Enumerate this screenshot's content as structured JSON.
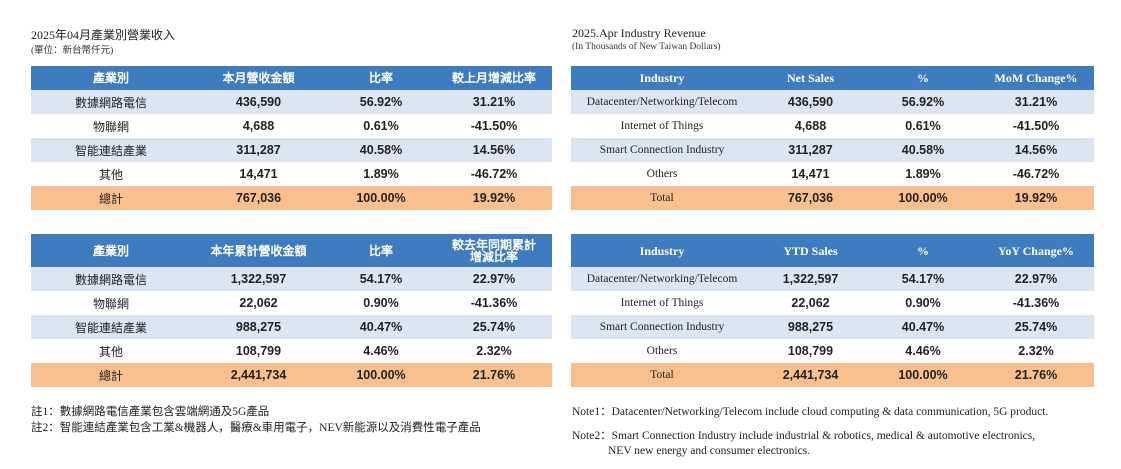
{
  "cn": {
    "title": "2025年04月產業別營業收入",
    "unit": "(單位：新台幣仟元)",
    "monthly": {
      "headers": [
        "產業別",
        "本月營收金額",
        "比率",
        "較上月增減比率"
      ],
      "rows": [
        [
          "數據網路電信",
          "436,590",
          "56.92%",
          "31.21%"
        ],
        [
          "物聯網",
          "4,688",
          "0.61%",
          "-41.50%"
        ],
        [
          "智能連結產業",
          "311,287",
          "40.58%",
          "14.56%"
        ],
        [
          "其他",
          "14,471",
          "1.89%",
          "-46.72%"
        ]
      ],
      "total": [
        "總計",
        "767,036",
        "100.00%",
        "19.92%"
      ]
    },
    "ytd": {
      "headers": [
        "產業別",
        "本年累計營收金額",
        "比率",
        "較去年同期累計\n增減比率"
      ],
      "rows": [
        [
          "數據網路電信",
          "1,322,597",
          "54.17%",
          "22.97%"
        ],
        [
          "物聯網",
          "22,062",
          "0.90%",
          "-41.36%"
        ],
        [
          "智能連結產業",
          "988,275",
          "40.47%",
          "25.74%"
        ],
        [
          "其他",
          "108,799",
          "4.46%",
          "2.32%"
        ]
      ],
      "total": [
        "總計",
        "2,441,734",
        "100.00%",
        "21.76%"
      ]
    },
    "notes": [
      "註1：數據網路電信產業包含雲端網通及5G產品",
      "註2：智能連結產業包含工業&機器人，醫療&車用電子，NEV新能源以及消費性電子產品"
    ]
  },
  "en": {
    "title": "2025.Apr Industry Revenue",
    "unit": "(In Thousands of New Taiwan Dollars)",
    "monthly": {
      "headers": [
        "Industry",
        "Net Sales",
        "%",
        "MoM Change%"
      ],
      "rows": [
        [
          "Datacenter/Networking/Telecom",
          "436,590",
          "56.92%",
          "31.21%"
        ],
        [
          "Internet of Things",
          "4,688",
          "0.61%",
          "-41.50%"
        ],
        [
          "Smart Connection Industry",
          "311,287",
          "40.58%",
          "14.56%"
        ],
        [
          "Others",
          "14,471",
          "1.89%",
          "-46.72%"
        ]
      ],
      "total": [
        "Total",
        "767,036",
        "100.00%",
        "19.92%"
      ]
    },
    "ytd": {
      "headers": [
        "Industry",
        "YTD Sales",
        "%",
        "YoY Change%"
      ],
      "rows": [
        [
          "Datacenter/Networking/Telecom",
          "1,322,597",
          "54.17%",
          "22.97%"
        ],
        [
          "Internet of Things",
          "22,062",
          "0.90%",
          "-41.36%"
        ],
        [
          "Smart Connection Industry",
          "988,275",
          "40.47%",
          "25.74%"
        ],
        [
          "Others",
          "108,799",
          "4.46%",
          "2.32%"
        ]
      ],
      "total": [
        "Total",
        "2,441,734",
        "100.00%",
        "21.76%"
      ]
    },
    "notes": [
      "Note1：Datacenter/Networking/Telecom include cloud computing & data communication, 5G product.",
      "Note2：Smart Connection Industry include industrial & robotics, medical & automotive electronics,",
      "NEV new energy and consumer electronics."
    ]
  },
  "colors": {
    "header_bg": "#3f7cbf",
    "row_alt_bg": "#dce6f2",
    "total_bg": "#f9c08f"
  }
}
